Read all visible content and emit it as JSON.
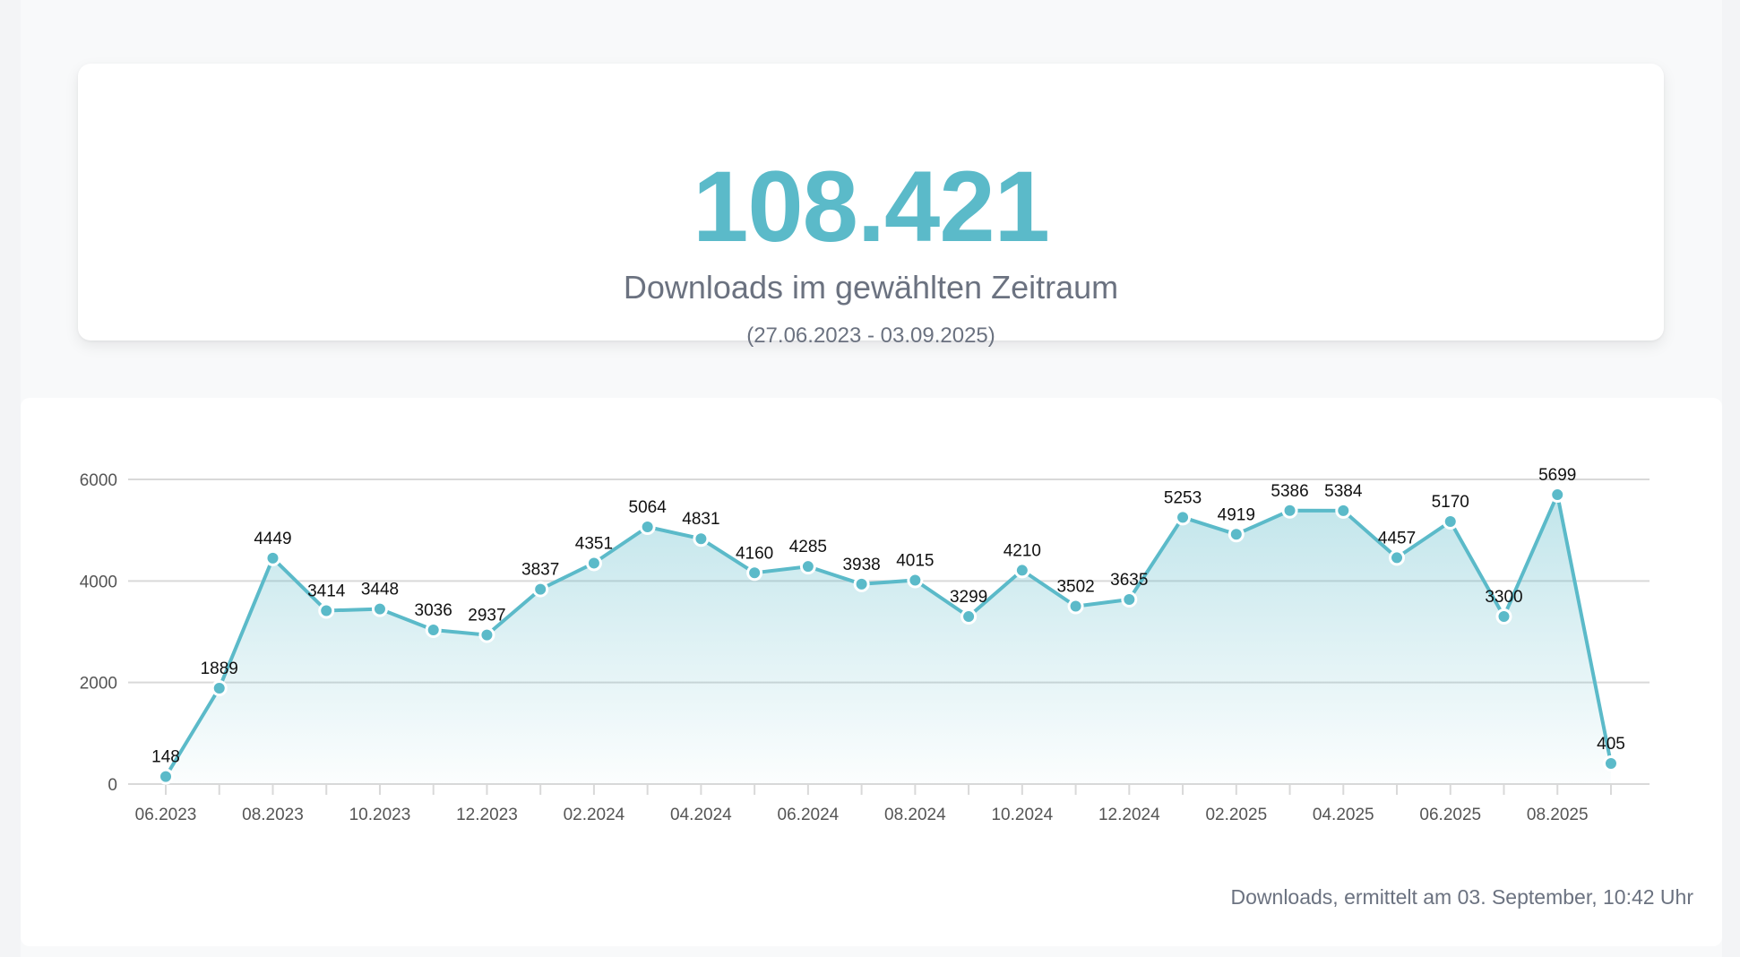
{
  "summary": {
    "total": "108.421",
    "label": "Downloads im gewählten Zeitraum",
    "range": "(27.06.2023 - 03.09.2025)"
  },
  "footer": {
    "note": "Downloads, ermittelt am 03. September, 10:42 Uhr"
  },
  "colors": {
    "accent": "#5bbac9",
    "text_muted": "#6b7280",
    "grid": "#d9d9d9"
  },
  "chart_data": {
    "type": "area",
    "title": "",
    "xlabel": "",
    "ylabel": "",
    "ylim": [
      0,
      6000
    ],
    "yticks": [
      0,
      2000,
      4000,
      6000
    ],
    "grid": true,
    "legend": "none",
    "x": [
      "06.2023",
      "07.2023",
      "08.2023",
      "09.2023",
      "10.2023",
      "11.2023",
      "12.2023",
      "01.2024",
      "02.2024",
      "03.2024",
      "04.2024",
      "05.2024",
      "06.2024",
      "07.2024",
      "08.2024",
      "09.2024",
      "10.2024",
      "11.2024",
      "12.2024",
      "01.2025",
      "02.2025",
      "03.2025",
      "04.2025",
      "05.2025",
      "06.2025",
      "07.2025",
      "08.2025",
      "09.2025"
    ],
    "xtick_labels": [
      "06.2023",
      "08.2023",
      "10.2023",
      "12.2023",
      "02.2024",
      "04.2024",
      "06.2024",
      "08.2024",
      "10.2024",
      "12.2024",
      "02.2025",
      "04.2025",
      "06.2025",
      "08.2025"
    ],
    "series": [
      {
        "name": "Downloads",
        "values": [
          148,
          1889,
          4449,
          3414,
          3448,
          3036,
          2937,
          3837,
          4351,
          5064,
          4831,
          4160,
          4285,
          3938,
          4015,
          3299,
          4210,
          3502,
          3635,
          5253,
          4919,
          5386,
          5384,
          4457,
          5170,
          3300,
          5699,
          405
        ]
      }
    ]
  }
}
